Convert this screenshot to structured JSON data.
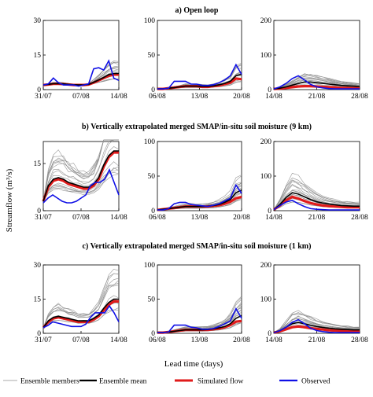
{
  "figure": {
    "ylabel": "Streamflow (m³/s)",
    "xlabel": "Lead time (days)",
    "rows": [
      {
        "title": "a) Open loop"
      },
      {
        "title": "b) Vertically extrapolated merged SMAP/in-situ soil moisture (9 km)"
      },
      {
        "title": "c) Vertically extrapolated merged SMAP/in-situ soil moisture (1 km)"
      }
    ]
  },
  "legend": [
    {
      "label": "Ensemble members",
      "color": "#8c8c8c"
    },
    {
      "label": "Ensemble mean",
      "color": "#000000"
    },
    {
      "label": "Simulated flow",
      "color": "#e01b1b"
    },
    {
      "label": "Observed",
      "color": "#1010e6"
    }
  ],
  "chart_data": [
    {
      "type": "line",
      "row": 0,
      "col": 0,
      "x_ticks": [
        "31/07",
        "07/08",
        "14/08"
      ],
      "ylim": [
        0,
        30
      ],
      "y_ticks": [
        0,
        15,
        30
      ],
      "series": [
        {
          "name": "Observed",
          "values": [
            2,
            2.5,
            5,
            3,
            2,
            2,
            2,
            1.5,
            2,
            2.5,
            9,
            9.5,
            8.5,
            12.5,
            5,
            4
          ]
        },
        {
          "name": "Simulated flow",
          "values": [
            2,
            2.2,
            2.5,
            2.5,
            2.4,
            2.2,
            2,
            2,
            2,
            2.2,
            3,
            4,
            5,
            6,
            6.5,
            6.5
          ]
        },
        {
          "name": "Ensemble mean",
          "values": [
            2,
            2.3,
            2.6,
            2.6,
            2.5,
            2.3,
            2.1,
            2,
            2,
            2.3,
            3.2,
            4.2,
            5.3,
            6.5,
            7,
            7
          ]
        }
      ]
    },
    {
      "type": "line",
      "row": 0,
      "col": 1,
      "x_ticks": [
        "06/08",
        "13/08",
        "20/08"
      ],
      "ylim": [
        0,
        100
      ],
      "y_ticks": [
        0,
        50,
        100
      ],
      "series": [
        {
          "name": "Observed",
          "values": [
            1,
            1,
            2,
            12,
            12,
            12,
            8,
            8,
            6,
            6,
            7,
            10,
            14,
            20,
            36,
            22
          ]
        },
        {
          "name": "Simulated flow",
          "values": [
            1,
            1,
            2,
            3,
            4,
            5,
            5,
            5,
            4,
            4,
            5,
            6,
            8,
            10,
            16,
            15
          ]
        },
        {
          "name": "Ensemble mean",
          "values": [
            1,
            1,
            2,
            3,
            4,
            5,
            5,
            5,
            4.5,
            4.5,
            5.5,
            7,
            9,
            12,
            20,
            22
          ]
        }
      ]
    },
    {
      "type": "line",
      "row": 0,
      "col": 2,
      "x_ticks": [
        "14/08",
        "21/08",
        "28/08"
      ],
      "ylim": [
        0,
        200
      ],
      "y_ticks": [
        0,
        100,
        200
      ],
      "series": [
        {
          "name": "Observed",
          "values": [
            2,
            8,
            18,
            32,
            40,
            28,
            15,
            8,
            5,
            3,
            2,
            2,
            2,
            2,
            2
          ]
        },
        {
          "name": "Simulated flow",
          "values": [
            2,
            3,
            5,
            7,
            9,
            10,
            10,
            9,
            8,
            7,
            6,
            5,
            5,
            4,
            4
          ]
        },
        {
          "name": "Ensemble mean",
          "values": [
            2,
            4,
            8,
            13,
            18,
            22,
            22,
            20,
            18,
            16,
            14,
            12,
            11,
            10,
            9
          ]
        }
      ]
    },
    {
      "type": "line",
      "row": 1,
      "col": 0,
      "x_ticks": [
        "31/07",
        "07/08",
        "14/08"
      ],
      "ylim": [
        0,
        22
      ],
      "y_ticks": [
        0,
        15
      ],
      "series": [
        {
          "name": "Observed",
          "values": [
            2.5,
            4,
            5,
            4,
            3,
            2.5,
            2.5,
            3,
            4,
            5,
            8,
            9,
            9,
            10,
            13,
            9,
            5
          ]
        },
        {
          "name": "Simulated flow",
          "values": [
            3,
            7.5,
            9.5,
            10,
            9.5,
            8.5,
            8,
            7.5,
            7,
            7,
            8,
            10,
            14,
            17,
            18.5,
            18.5
          ]
        },
        {
          "name": "Ensemble mean",
          "values": [
            3,
            8,
            10,
            10.5,
            10,
            9,
            8.5,
            8,
            7.5,
            7.5,
            8.5,
            10.5,
            14.5,
            17.5,
            19,
            19
          ]
        }
      ]
    },
    {
      "type": "line",
      "row": 1,
      "col": 1,
      "x_ticks": [
        "06/08",
        "13/08",
        "20/08"
      ],
      "ylim": [
        0,
        100
      ],
      "y_ticks": [
        0,
        50,
        100
      ],
      "series": [
        {
          "name": "Observed",
          "values": [
            1,
            1,
            3,
            10,
            12,
            12,
            9,
            8,
            7,
            6,
            8,
            10,
            14,
            18,
            37,
            25
          ]
        },
        {
          "name": "Simulated flow",
          "values": [
            1,
            2,
            3,
            4,
            5,
            6,
            6,
            6,
            6,
            6,
            7,
            8,
            10,
            13,
            18,
            20
          ]
        },
        {
          "name": "Ensemble mean",
          "values": [
            1,
            2,
            3,
            4,
            5,
            6,
            6,
            6,
            6,
            6.5,
            7.5,
            9,
            12,
            16,
            26,
            30
          ]
        }
      ]
    },
    {
      "type": "line",
      "row": 1,
      "col": 2,
      "x_ticks": [
        "14/08",
        "21/08",
        "28/08"
      ],
      "ylim": [
        0,
        200
      ],
      "y_ticks": [
        0,
        100,
        200
      ],
      "series": [
        {
          "name": "Observed",
          "values": [
            3,
            15,
            25,
            30,
            20,
            12,
            6,
            4,
            3,
            2,
            2,
            2,
            2,
            2,
            2
          ]
        },
        {
          "name": "Simulated flow",
          "values": [
            3,
            15,
            30,
            40,
            35,
            28,
            22,
            18,
            15,
            13,
            12,
            11,
            10,
            10,
            10
          ]
        },
        {
          "name": "Ensemble mean",
          "values": [
            3,
            18,
            38,
            52,
            48,
            40,
            32,
            26,
            22,
            19,
            17,
            15,
            14,
            13,
            13
          ]
        }
      ]
    },
    {
      "type": "line",
      "row": 2,
      "col": 0,
      "x_ticks": [
        "31/07",
        "07/08",
        "14/08"
      ],
      "ylim": [
        0,
        30
      ],
      "y_ticks": [
        0,
        15,
        30
      ],
      "series": [
        {
          "name": "Observed",
          "values": [
            2.5,
            3.5,
            5,
            4.5,
            4,
            3.5,
            3,
            3,
            3,
            4,
            7,
            9,
            9,
            9,
            12,
            9,
            5
          ]
        },
        {
          "name": "Simulated flow",
          "values": [
            2.5,
            5,
            6.5,
            7,
            6.5,
            6,
            5.5,
            5,
            5,
            5,
            6,
            7.5,
            10,
            12.5,
            14,
            14
          ]
        },
        {
          "name": "Ensemble mean",
          "values": [
            2.5,
            5.5,
            7,
            7.5,
            7,
            6.5,
            6,
            5.5,
            5.5,
            5.5,
            6.5,
            8,
            11,
            13.5,
            15,
            15
          ]
        }
      ]
    },
    {
      "type": "line",
      "row": 2,
      "col": 1,
      "x_ticks": [
        "06/08",
        "13/08",
        "20/08"
      ],
      "ylim": [
        0,
        100
      ],
      "y_ticks": [
        0,
        50,
        100
      ],
      "series": [
        {
          "name": "Observed",
          "values": [
            1,
            1,
            2,
            12,
            12,
            12,
            9,
            8,
            6,
            6,
            7,
            10,
            14,
            18,
            36,
            22
          ]
        },
        {
          "name": "Simulated flow",
          "values": [
            1,
            1,
            2,
            3,
            4,
            5,
            5,
            5,
            5,
            5,
            6,
            7,
            9,
            12,
            17,
            18
          ]
        },
        {
          "name": "Ensemble mean",
          "values": [
            1,
            1,
            2,
            3,
            4,
            5,
            5,
            5,
            5,
            5.5,
            6.5,
            8,
            10,
            14,
            22,
            26
          ]
        }
      ]
    },
    {
      "type": "line",
      "row": 2,
      "col": 2,
      "x_ticks": [
        "14/08",
        "21/08",
        "28/08"
      ],
      "ylim": [
        0,
        200
      ],
      "y_ticks": [
        0,
        100,
        200
      ],
      "series": [
        {
          "name": "Observed",
          "values": [
            2,
            8,
            18,
            32,
            40,
            28,
            15,
            8,
            5,
            3,
            2,
            2,
            2,
            2,
            2
          ]
        },
        {
          "name": "Simulated flow",
          "values": [
            2,
            6,
            12,
            18,
            20,
            18,
            15,
            13,
            11,
            9,
            8,
            7,
            7,
            6,
            6
          ]
        },
        {
          "name": "Ensemble mean",
          "values": [
            2,
            8,
            18,
            28,
            32,
            28,
            24,
            20,
            17,
            15,
            13,
            12,
            11,
            10,
            10
          ]
        }
      ]
    }
  ]
}
